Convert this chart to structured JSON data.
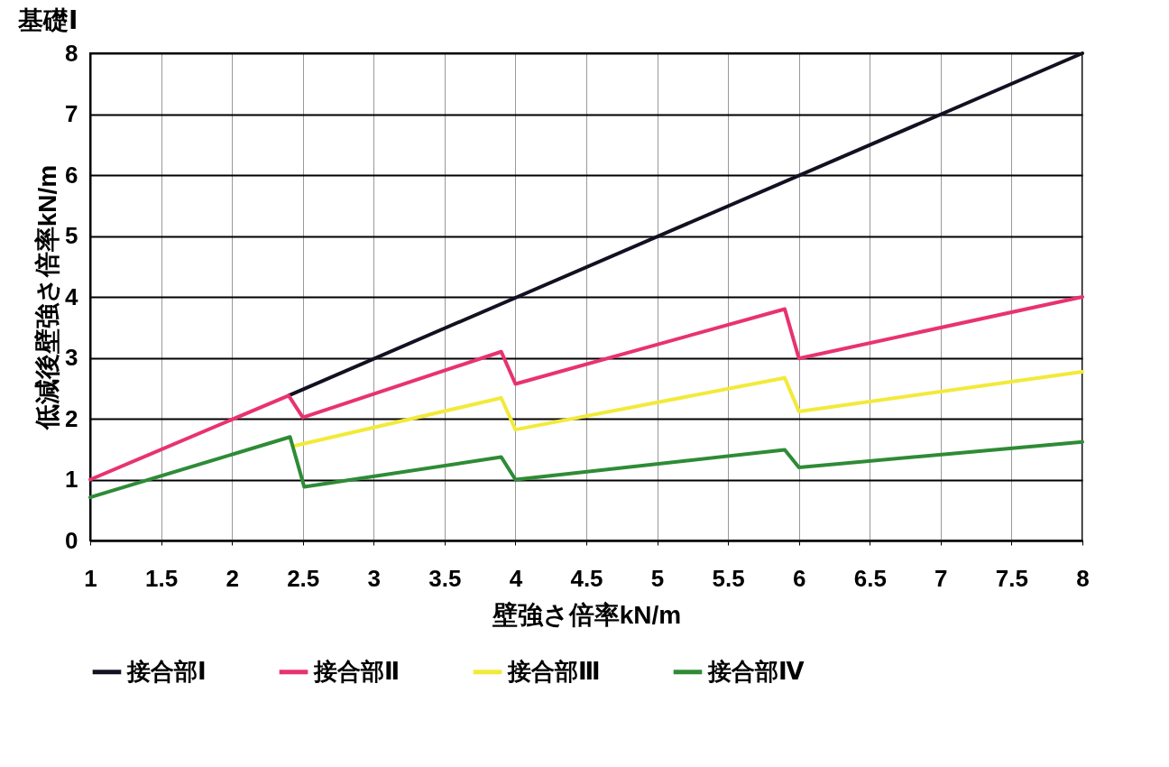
{
  "chart_data": {
    "type": "line",
    "title": "基礎Ⅰ",
    "xlabel": "壁強さ倍率kN/m",
    "ylabel": "低減後壁強さ倍率kN/m",
    "xlim": [
      1,
      8
    ],
    "xticks": [
      1,
      1.5,
      2,
      2.5,
      3,
      3.5,
      4,
      4.5,
      5,
      5.5,
      6,
      6.5,
      7,
      7.5,
      8
    ],
    "ylim": [
      0,
      8
    ],
    "yticks": [
      0,
      1,
      2,
      3,
      4,
      5,
      6,
      7,
      8
    ],
    "grid": true,
    "legend": "bottom",
    "series": [
      {
        "name": "接合部Ⅰ",
        "color": "#111122",
        "x": [
          2.4,
          8
        ],
        "values": [
          2.38,
          8
        ]
      },
      {
        "name": "接合部Ⅱ",
        "color": "#e8336e",
        "x": [
          1,
          2.4,
          2.5,
          3.9,
          4.0,
          5.9,
          6.0,
          8
        ],
        "values": [
          1,
          2.38,
          2.02,
          3.1,
          2.57,
          3.8,
          2.99,
          4.0
        ]
      },
      {
        "name": "接合部Ⅲ",
        "color": "#f2ea3a",
        "x": [
          2.45,
          3.9,
          4.0,
          5.9,
          6.0,
          8
        ],
        "values": [
          1.56,
          2.34,
          1.82,
          2.67,
          2.12,
          2.77
        ]
      },
      {
        "name": "接合部Ⅳ",
        "color": "#2e8b36",
        "x": [
          1,
          2.41,
          2.51,
          3.9,
          4.0,
          5.9,
          6.0,
          8
        ],
        "values": [
          0.71,
          1.7,
          0.88,
          1.37,
          1.0,
          1.49,
          1.2,
          1.62
        ]
      }
    ]
  }
}
